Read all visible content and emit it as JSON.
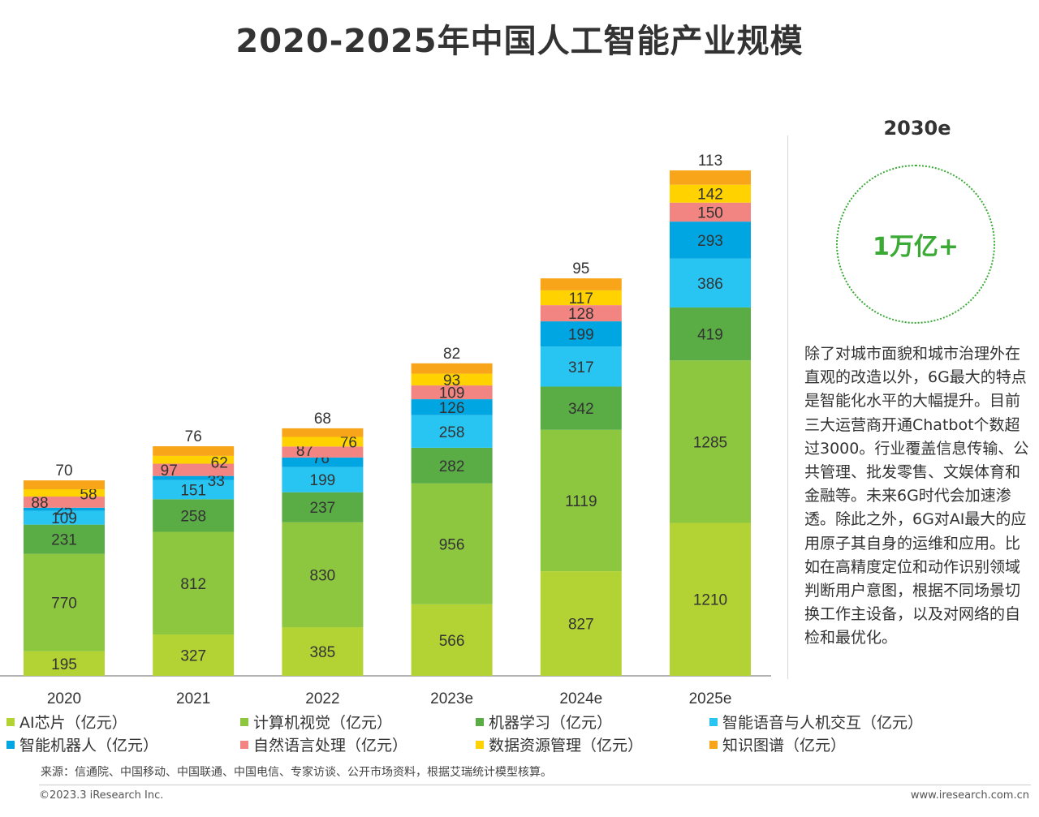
{
  "chart_data": {
    "type": "bar",
    "stacked": true,
    "title": "2020-2025年中国人工智能产业规模",
    "categories": [
      "2020",
      "2021",
      "2022",
      "2023e",
      "2024e",
      "2025e"
    ],
    "series": [
      {
        "name": "AI芯片（亿元）",
        "color": "#b3d334",
        "values": [
          195,
          327,
          385,
          566,
          827,
          1210
        ]
      },
      {
        "name": "计算机视觉（亿元）",
        "color": "#8dc63f",
        "values": [
          770,
          812,
          830,
          956,
          1119,
          1285
        ]
      },
      {
        "name": "机器学习（亿元）",
        "color": "#5aac45",
        "values": [
          231,
          258,
          237,
          282,
          342,
          419
        ]
      },
      {
        "name": "智能语音与人机交互（亿元）",
        "color": "#29c5f2",
        "values": [
          109,
          151,
          199,
          258,
          317,
          386
        ]
      },
      {
        "name": "智能机器人（亿元）",
        "color": "#00a6e2",
        "values": [
          25,
          33,
          76,
          126,
          199,
          293
        ]
      },
      {
        "name": "自然语言处理（亿元）",
        "color": "#f28482",
        "values": [
          88,
          97,
          87,
          109,
          128,
          150
        ]
      },
      {
        "name": "数据资源管理（亿元）",
        "color": "#ffd200",
        "values": [
          58,
          62,
          76,
          93,
          117,
          142
        ]
      },
      {
        "name": "知识图谱（亿元）",
        "color": "#f9a51a",
        "values": [
          70,
          76,
          68,
          82,
          95,
          113
        ]
      }
    ],
    "ylim": [
      0,
      4000
    ],
    "xlabel": "",
    "ylabel": ""
  },
  "side": {
    "year": "2030e",
    "value": "1万亿+",
    "paragraph": "除了对城市面貌和城市治理外在直观的改造以外，6G最大的特点是智能化水平的大幅提升。目前三大运营商开通Chatbot个数超过3000。行业覆盖信息传输、公共管理、批发零售、文娱体育和金融等。未来6G时代会加速渗透。除此之外，6G对AI最大的应用原子其自身的运维和应用。比如在高精度定位和动作识别领域判断用户意图，根据不同场景切换工作主设备，以及对网络的自检和最优化。"
  },
  "footer": {
    "source": "来源：信通院、中国移动、中国联通、中国电信、专家访谈、公开市场资料，根据艾瑞统计模型核算。",
    "copyright": "©2023.3 iResearch Inc.",
    "website": "www.iresearch.com.cn"
  }
}
